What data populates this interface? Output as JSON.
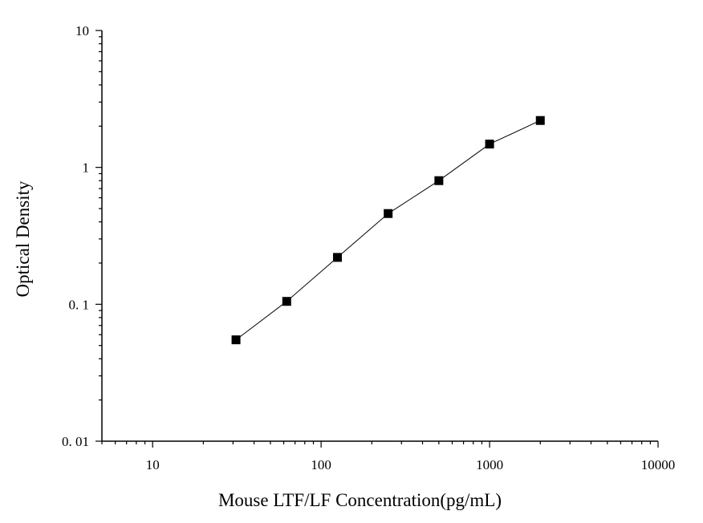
{
  "chart_data": {
    "type": "scatter",
    "title": "",
    "xlabel": "Mouse LTF/LF Concentration(pg/mL)",
    "ylabel": "Optical Density",
    "x_scale": "log",
    "y_scale": "log",
    "xlim": [
      5,
      10000
    ],
    "ylim": [
      0.01,
      10
    ],
    "x_ticks": [
      10,
      100,
      1000,
      10000
    ],
    "x_tick_labels": [
      "10",
      "100",
      "1000",
      "10000"
    ],
    "y_ticks": [
      0.01,
      0.1,
      1,
      10
    ],
    "y_tick_labels": [
      "0. 01",
      "0. 1",
      "1",
      "10"
    ],
    "grid": false,
    "connected": true,
    "marker": "square",
    "color": "#000000",
    "series": [
      {
        "x": [
          31.25,
          62.5,
          125,
          250,
          500,
          1000,
          2000
        ],
        "y": [
          0.055,
          0.105,
          0.22,
          0.46,
          0.8,
          1.48,
          2.2
        ]
      }
    ]
  }
}
